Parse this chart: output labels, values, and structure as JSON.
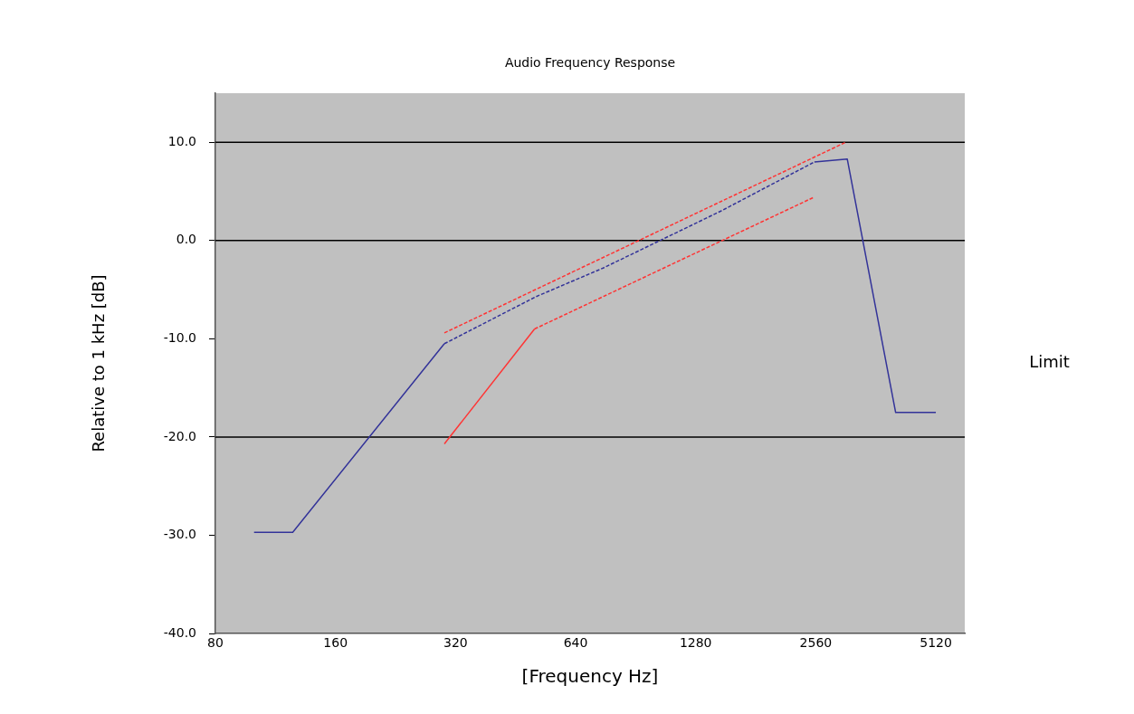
{
  "chart_data": {
    "type": "line",
    "title": "Audio Frequency Response",
    "xlabel": "[Frequency Hz]",
    "ylabel": "Relative to 1 kHz [dB]",
    "annotations": [
      "Limit"
    ],
    "log": "x",
    "xlim": [
      80,
      6050
    ],
    "xticks": [
      80,
      160,
      320,
      640,
      1280,
      2560,
      5120
    ],
    "ylim": [
      -40,
      15
    ],
    "yticks": [
      {
        "value": 10,
        "label": "10.0"
      },
      {
        "value": 0,
        "label": "0.0"
      },
      {
        "value": -10,
        "label": "-10.0"
      },
      {
        "value": -20,
        "label": "-20.0"
      },
      {
        "value": -30,
        "label": "-30.0"
      },
      {
        "value": -40,
        "label": "-40.0"
      }
    ],
    "grid": false,
    "legend": false,
    "marker": "none",
    "ref_lines": [
      {
        "axis": "y",
        "value": 10,
        "color": "#000000"
      },
      {
        "axis": "y",
        "value": 0,
        "color": "#000000"
      },
      {
        "axis": "y",
        "value": -20,
        "color": "#000000"
      }
    ],
    "series": [
      {
        "color": "#333399",
        "line_style": "solid",
        "x": [
          100,
          125,
          300
        ],
        "values": [
          -29.7,
          -29.7,
          -10.5
        ]
      },
      {
        "color": "#333399",
        "line_style": "dashed",
        "x": [
          300,
          510,
          750,
          1480,
          2540
        ],
        "values": [
          -10.5,
          -5.7,
          -2.8,
          3.0,
          8.0
        ]
      },
      {
        "color": "#333399",
        "line_style": "solid",
        "x": [
          2540,
          3070,
          4060,
          5120
        ],
        "values": [
          8.0,
          8.3,
          -17.5,
          -17.5
        ]
      },
      {
        "color": "#ff3333",
        "line_style": "dashed",
        "x": [
          300,
          3040
        ],
        "values": [
          -9.4,
          10.0
        ]
      },
      {
        "color": "#ff3333",
        "line_style": "solid",
        "x": [
          300,
          505
        ],
        "values": [
          -20.7,
          -9.0
        ]
      },
      {
        "color": "#ff3333",
        "line_style": "dashed",
        "x": [
          505,
          2530
        ],
        "values": [
          -9.0,
          4.4
        ]
      }
    ]
  }
}
